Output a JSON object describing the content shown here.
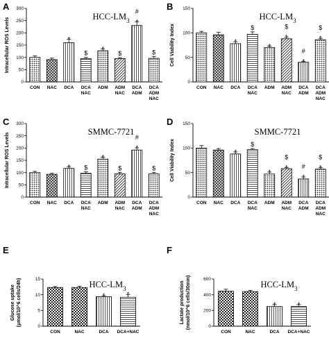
{
  "chart_data": [
    {
      "type": "bar",
      "panel": "A",
      "title": "HCC-LM3",
      "ylabel": "Intracellular ROS Levels",
      "ylim": [
        0,
        300
      ],
      "yticks": [
        0,
        50,
        100,
        150,
        200,
        250,
        300
      ],
      "categories": [
        [
          "CON"
        ],
        [
          "NAC"
        ],
        [
          "DCA"
        ],
        [
          "DCA",
          "NAC"
        ],
        [
          "ADM"
        ],
        [
          "ADM",
          "NAC"
        ],
        [
          "DCA",
          "ADM"
        ],
        [
          "DCA",
          "ADM",
          "NAC"
        ]
      ],
      "values": [
        100,
        91,
        160,
        95,
        127,
        95,
        230,
        96
      ],
      "errors": [
        6,
        6,
        14,
        5,
        7,
        4,
        15,
        8
      ],
      "patterns": [
        "dot",
        "cross",
        "vline",
        "hline",
        "dot",
        "diag",
        "vline",
        "dot"
      ],
      "annotations": [
        [],
        [],
        [
          "*"
        ],
        [
          "$"
        ],
        [
          "*"
        ],
        [
          "$"
        ],
        [
          "*",
          "#"
        ],
        [
          "$"
        ]
      ]
    },
    {
      "type": "bar",
      "panel": "B",
      "title": "HCC-LM3",
      "ylabel": "Cell Viability Index",
      "ylim": [
        0,
        150
      ],
      "yticks": [
        0,
        50,
        100,
        150
      ],
      "categories": [
        [
          "CON"
        ],
        [
          "NAC"
        ],
        [
          "DCA"
        ],
        [
          "DCA",
          "NAC"
        ],
        [
          "ADM"
        ],
        [
          "ADM",
          "NAC"
        ],
        [
          "DCA",
          "ADM"
        ],
        [
          "DCA",
          "ADM",
          "NAC"
        ]
      ],
      "values": [
        100,
        96,
        78,
        97,
        70,
        88,
        40,
        86
      ],
      "errors": [
        3,
        5,
        4,
        5,
        3,
        3,
        2,
        3
      ],
      "patterns": [
        "dot",
        "cross",
        "vline",
        "hline",
        "dot",
        "diag",
        "vline",
        "dot"
      ],
      "annotations": [
        [],
        [],
        [
          "*"
        ],
        [
          "$"
        ],
        [
          "*"
        ],
        [
          "*",
          "$"
        ],
        [
          "*",
          "#"
        ],
        [
          "*",
          "$"
        ]
      ]
    },
    {
      "type": "bar",
      "panel": "C",
      "title": "SMMC-7721",
      "ylabel": "Intracellular ROS Levels",
      "ylim": [
        0,
        300
      ],
      "yticks": [
        0,
        50,
        100,
        150,
        200,
        250,
        300
      ],
      "categories": [
        [
          "CON"
        ],
        [
          "NAC"
        ],
        [
          "DCA"
        ],
        [
          "DCA",
          "NAC"
        ],
        [
          "ADM"
        ],
        [
          "ADM",
          "NAC"
        ],
        [
          "DCA",
          "ADM"
        ],
        [
          "DCA",
          "ADM",
          "NAC"
        ]
      ],
      "values": [
        100,
        93,
        117,
        97,
        155,
        95,
        192,
        95
      ],
      "errors": [
        5,
        4,
        6,
        6,
        8,
        6,
        9,
        6
      ],
      "patterns": [
        "dot",
        "cross",
        "vline",
        "hline",
        "dot",
        "diag",
        "vline",
        "dot"
      ],
      "annotations": [
        [],
        [],
        [
          "*"
        ],
        [
          "$"
        ],
        [
          "*"
        ],
        [
          "$"
        ],
        [
          "*",
          "#"
        ],
        [
          "$"
        ]
      ]
    },
    {
      "type": "bar",
      "panel": "D",
      "title": "SMMC-7721",
      "ylabel": "Cell Viability Index",
      "ylim": [
        0,
        150
      ],
      "yticks": [
        0,
        50,
        100,
        150
      ],
      "categories": [
        [
          "CON"
        ],
        [
          "NAC"
        ],
        [
          "DCA"
        ],
        [
          "DCA",
          "NAC"
        ],
        [
          "ADM"
        ],
        [
          "ADM",
          "NAC"
        ],
        [
          "DCA",
          "ADM"
        ],
        [
          "DCA",
          "ADM",
          "NAC"
        ]
      ],
      "values": [
        100,
        96,
        88,
        97,
        47,
        58,
        37,
        57
      ],
      "errors": [
        5,
        3,
        4,
        2,
        4,
        2,
        4,
        3
      ],
      "patterns": [
        "dot",
        "cross",
        "vline",
        "hline",
        "dot",
        "diag",
        "vline",
        "dot"
      ],
      "annotations": [
        [],
        [],
        [
          "*"
        ],
        [
          "$"
        ],
        [
          "*"
        ],
        [
          "*",
          "$"
        ],
        [
          "*",
          "#"
        ],
        [
          "*",
          "$"
        ]
      ]
    },
    {
      "type": "bar",
      "panel": "E",
      "title": "HCC-LM3",
      "ylabel": "Glucose uptake (μmol/10^6 cells/24h)",
      "ylim": [
        0,
        15
      ],
      "yticks": [
        0,
        5,
        10,
        15
      ],
      "categories": [
        [
          "CON"
        ],
        [
          "NAC"
        ],
        [
          "DCA"
        ],
        [
          "DCA+NAC"
        ]
      ],
      "values": [
        12.3,
        12.3,
        9.4,
        9.2
      ],
      "errors": [
        0.3,
        0.4,
        0.3,
        0.9
      ],
      "patterns": [
        "check",
        "check",
        "vline",
        "hline"
      ],
      "annotations": [
        [],
        [],
        [
          "*"
        ],
        [
          "*"
        ]
      ]
    },
    {
      "type": "bar",
      "panel": "F",
      "title": "HCC-LM3",
      "ylabel": "Lactate production (nmol/10^6 cells/30min)",
      "ylim": [
        0,
        600
      ],
      "yticks": [
        0,
        200,
        400,
        600
      ],
      "categories": [
        [
          "CON"
        ],
        [
          "NAC"
        ],
        [
          "DCA"
        ],
        [
          "DCA+NAC"
        ]
      ],
      "values": [
        445,
        440,
        250,
        250
      ],
      "errors": [
        25,
        15,
        25,
        25
      ],
      "patterns": [
        "check",
        "check",
        "vline",
        "hline"
      ],
      "annotations": [
        [],
        [],
        [
          "*"
        ],
        [
          "*"
        ]
      ]
    }
  ]
}
